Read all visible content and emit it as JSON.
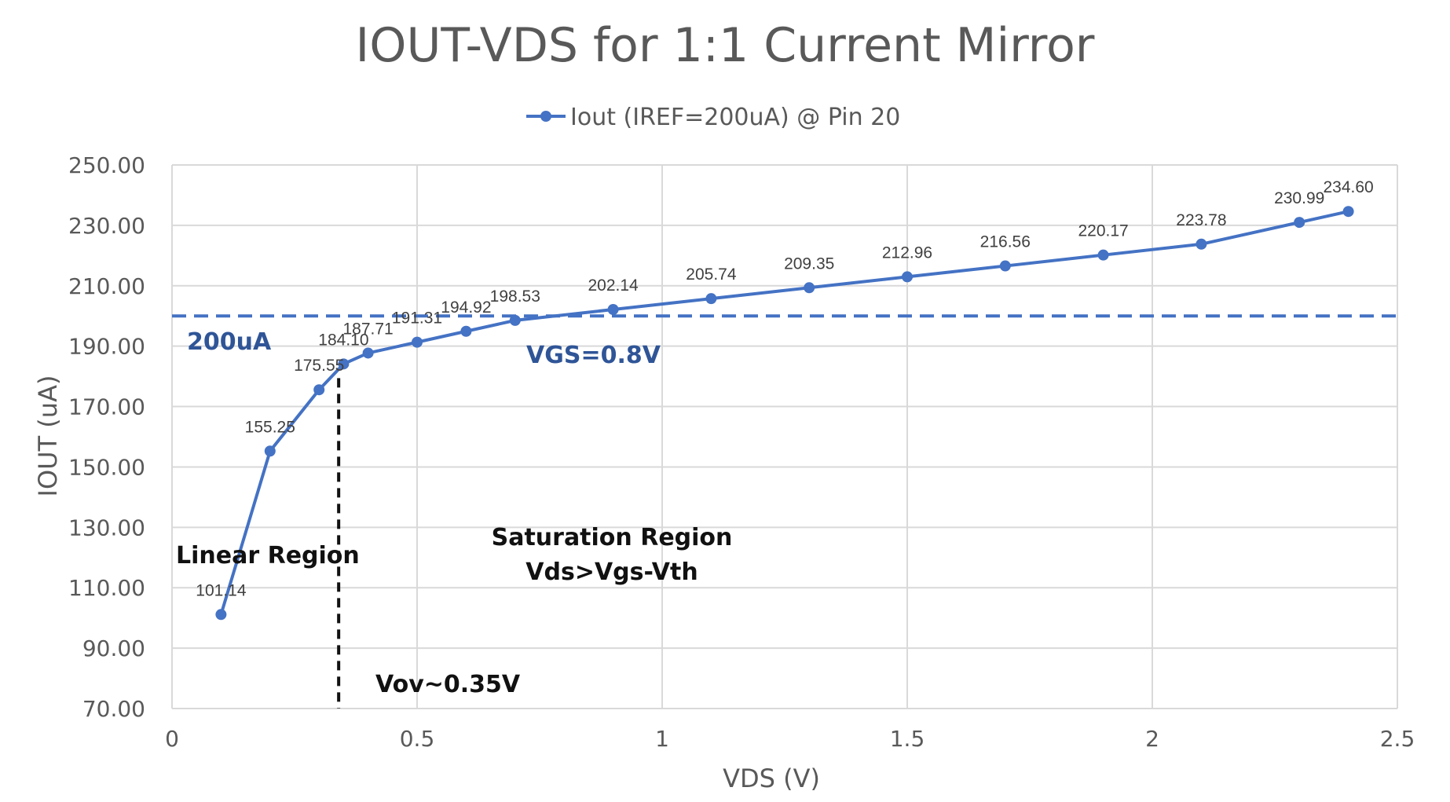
{
  "chart_data": {
    "type": "line",
    "title": "IOUT-VDS for 1:1 Current Mirror",
    "xlabel": "VDS (V)",
    "ylabel": "IOUT (uA)",
    "xlim": [
      0,
      2.5
    ],
    "ylim": [
      70,
      250
    ],
    "x_ticks": [
      "0",
      "0.5",
      "1",
      "1.5",
      "2",
      "2.5"
    ],
    "y_ticks": [
      "70.00",
      "90.00",
      "110.00",
      "130.00",
      "150.00",
      "170.00",
      "190.00",
      "210.00",
      "230.00",
      "250.00"
    ],
    "grid": true,
    "legend_position": "top",
    "series": [
      {
        "name": "Iout (IREF=200uA) @ Pin 20",
        "color": "#4472C4",
        "x": [
          0.1,
          0.2,
          0.3,
          0.35,
          0.4,
          0.5,
          0.6,
          0.7,
          0.9,
          1.1,
          1.3,
          1.5,
          1.7,
          1.9,
          2.1,
          2.3,
          2.4
        ],
        "y": [
          101.14,
          155.25,
          175.55,
          184.1,
          187.71,
          191.31,
          194.92,
          198.53,
          202.14,
          205.74,
          209.35,
          212.96,
          216.56,
          220.17,
          223.78,
          230.99,
          234.6
        ],
        "labels": [
          "101.14",
          "155.25",
          "175.55",
          "184.10",
          "187.71",
          "191.31",
          "194.92",
          "198.53",
          "202.14",
          "205.74",
          "209.35",
          "212.96",
          "216.56",
          "220.17",
          "223.78",
          "230.99",
          "234.60"
        ]
      }
    ],
    "reference_line": {
      "y": 200,
      "label": "200uA",
      "color": "#4472C4"
    },
    "vertical_line": {
      "x": 0.34,
      "label": "Vov~0.35V",
      "color": "#111111"
    },
    "annotations": {
      "linear_region": "Linear Region",
      "saturation_line1": "Saturation Region",
      "saturation_line2": "Vds>Vgs-Vth",
      "vgs": "VGS=0.8V"
    }
  }
}
